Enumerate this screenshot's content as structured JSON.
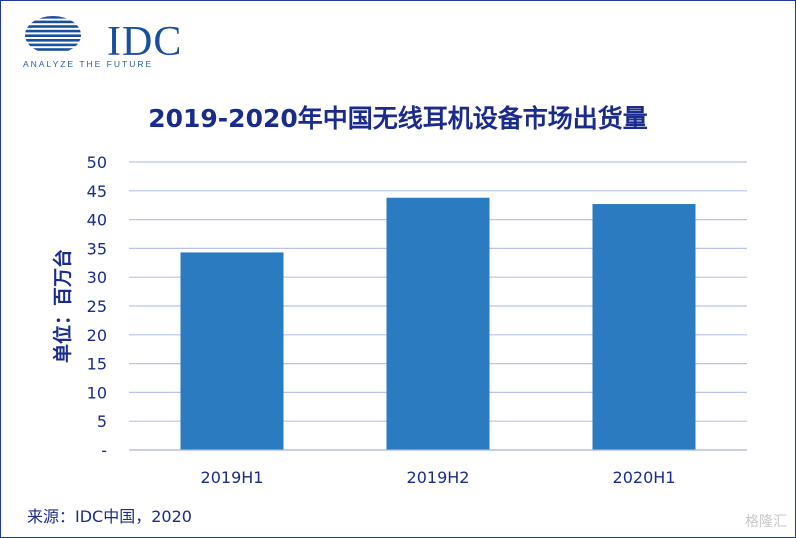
{
  "brand": {
    "logo_text": "IDC",
    "tagline": "ANALYZE THE FUTURE"
  },
  "chart_data": {
    "type": "bar",
    "title": "2019-2020年中国无线耳机设备市场出货量",
    "ylabel": "单位：百万台",
    "xlabel": "",
    "categories": [
      "2019H1",
      "2019H2",
      "2020H1"
    ],
    "values": [
      34.3,
      43.8,
      42.7
    ],
    "ylim": [
      0,
      50
    ],
    "yticks": [
      "-",
      "5",
      "10",
      "15",
      "20",
      "25",
      "30",
      "35",
      "40",
      "45",
      "50"
    ],
    "grid": true,
    "bar_color": "#2b7bc0",
    "grid_color": "#b9c3ea"
  },
  "footer": {
    "source": "来源：IDC中国，2020",
    "watermark": "格隆汇"
  }
}
